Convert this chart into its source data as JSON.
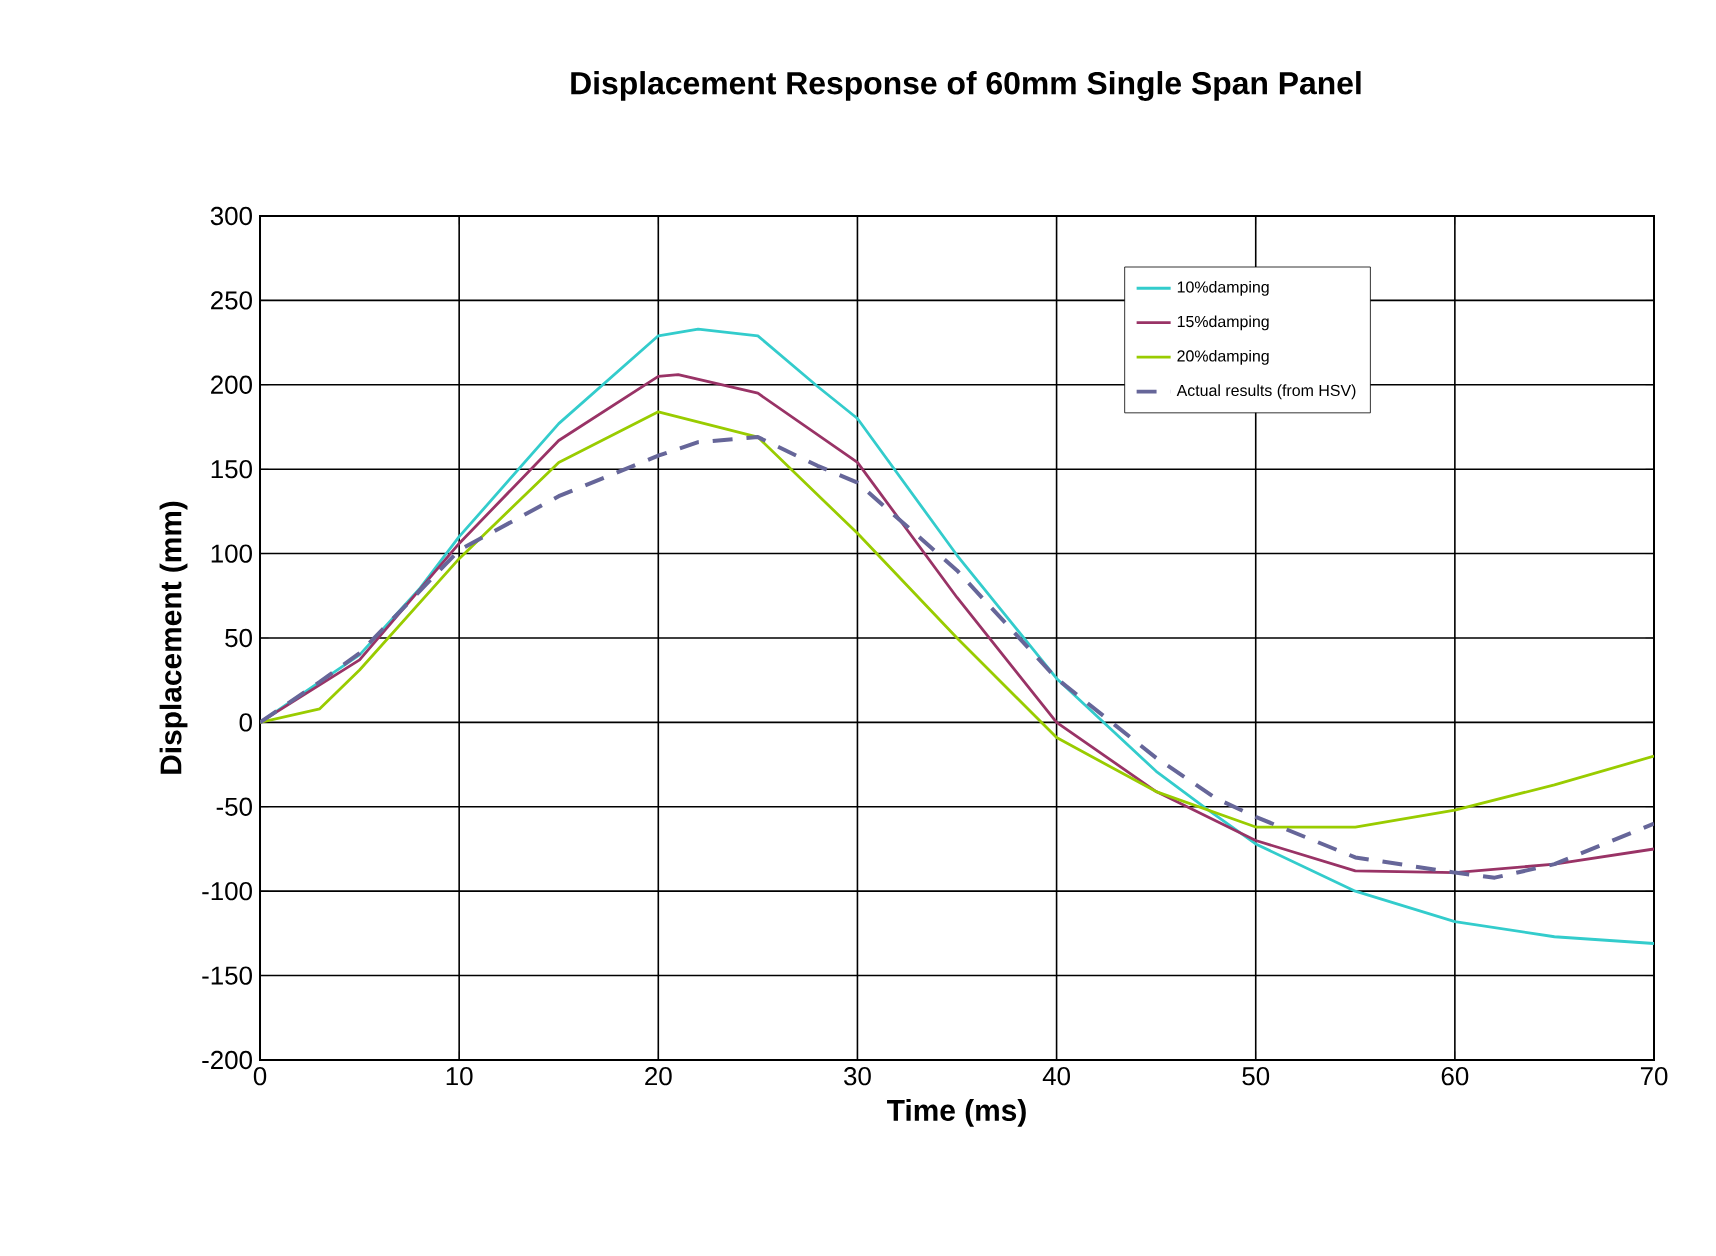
{
  "chart_data": {
    "type": "line",
    "title": "Displacement Response of 60mm Single Span Panel",
    "xlabel": "Time (ms)",
    "ylabel": "Displacement (mm)",
    "xlim": [
      0,
      70
    ],
    "ylim": [
      -200,
      300
    ],
    "xticks": [
      0,
      10,
      20,
      30,
      40,
      50,
      60,
      70
    ],
    "yticks": [
      -200,
      -150,
      -100,
      -50,
      0,
      50,
      100,
      150,
      200,
      250,
      300
    ],
    "grid": true,
    "legend": "top right",
    "series": [
      {
        "name": "10%damping",
        "color": "#33cccc",
        "x": [
          0,
          5,
          8,
          10,
          15,
          20,
          22,
          25,
          28,
          30,
          35,
          40,
          45,
          47.5,
          50,
          55,
          60,
          65,
          70
        ],
        "values": [
          0,
          40,
          79,
          110,
          177,
          229,
          233,
          229,
          199,
          180,
          99,
          26,
          -29,
          -51,
          -72,
          -100,
          -118,
          -127,
          -131
        ]
      },
      {
        "name": "15%damping",
        "color": "#993366",
        "x": [
          0,
          5,
          10,
          15,
          20,
          21,
          25,
          30,
          35,
          40,
          45,
          50,
          55,
          60,
          65,
          70
        ],
        "values": [
          0,
          37,
          106,
          167,
          205,
          206,
          195,
          154,
          74,
          0,
          -41,
          -70,
          -88,
          -89,
          -84,
          -75
        ]
      },
      {
        "name": "20%damping",
        "color": "#99cc00",
        "x": [
          0,
          3,
          5,
          10,
          15,
          20,
          25,
          30,
          35,
          40,
          45,
          50,
          55,
          60,
          65,
          70
        ],
        "values": [
          0,
          8,
          31,
          97,
          154,
          184,
          169,
          112,
          50,
          -9,
          -41,
          -62,
          -62,
          -52,
          -37,
          -20
        ]
      },
      {
        "name": "Actual results (from HSV)",
        "color": "#666699",
        "line_style": "dashed",
        "x": [
          0,
          3,
          5,
          10,
          15,
          20,
          22,
          25,
          28,
          30,
          35,
          40,
          45,
          48,
          50,
          55,
          60,
          62,
          65,
          70
        ],
        "values": [
          0,
          24,
          41,
          102,
          134,
          158,
          166,
          169,
          152,
          142,
          90,
          26,
          -21,
          -45,
          -56,
          -80,
          -89,
          -92,
          -84,
          -60
        ]
      }
    ]
  }
}
